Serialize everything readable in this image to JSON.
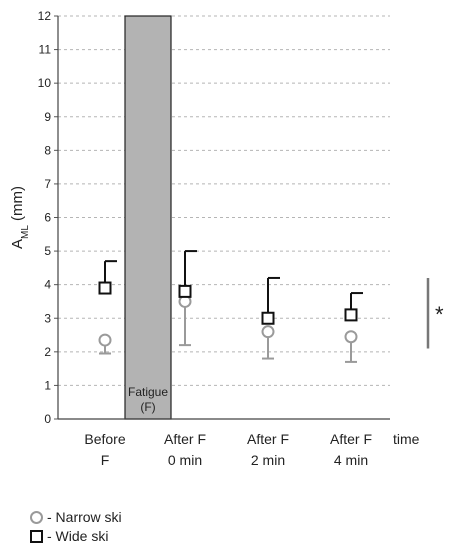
{
  "chart_data": {
    "type": "scatter",
    "title": "",
    "ylabel_main": "A",
    "ylabel_sub": "ML",
    "ylabel_unit": " (mm)",
    "xlabel": "time",
    "ylim": [
      0,
      12
    ],
    "yticks": [
      0,
      1,
      2,
      3,
      4,
      5,
      6,
      7,
      8,
      9,
      10,
      11,
      12
    ],
    "grid": "horizontal-dashed",
    "categories": [
      {
        "line1": "Before",
        "line2": "F"
      },
      {
        "line1": "After F",
        "line2": "0 min"
      },
      {
        "line1": "After F",
        "line2": "2 min"
      },
      {
        "line1": "After F",
        "line2": "4 min"
      }
    ],
    "series": [
      {
        "name": "- Narrow ski",
        "marker": "circle",
        "color": "#9a9a9a",
        "values": [
          2.35,
          3.5,
          2.6,
          2.45
        ],
        "error_low": [
          1.95,
          2.2,
          1.8,
          1.7
        ]
      },
      {
        "name": "- Wide ski",
        "marker": "square",
        "color": "#111111",
        "values": [
          3.9,
          3.8,
          3.0,
          3.1
        ],
        "error_high": [
          4.7,
          5.0,
          4.2,
          3.75
        ]
      }
    ],
    "fatigue_band": {
      "label_line1": "Fatigue",
      "label_line2": "(F)",
      "ymin": 0,
      "ymax": 12,
      "color": "#b3b3b3"
    },
    "significance": {
      "symbol": "*",
      "ymin": 2.1,
      "ymax": 4.2
    }
  }
}
